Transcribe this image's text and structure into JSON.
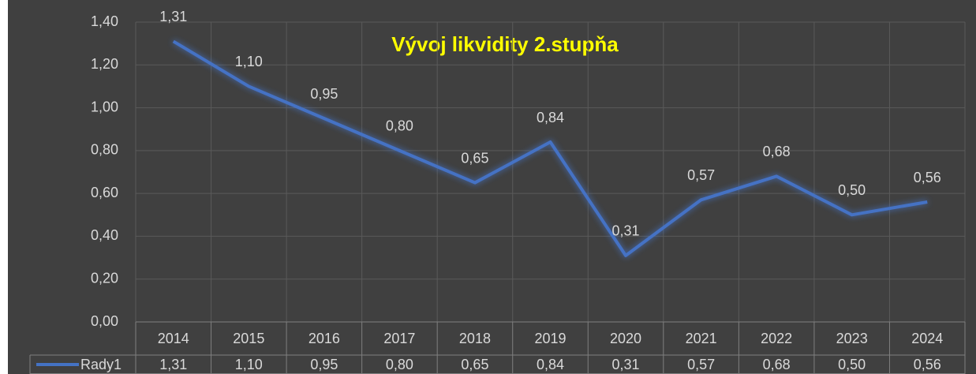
{
  "chart_data": {
    "type": "line",
    "title": "Vývoj likvidity 2.stupňa",
    "categories": [
      "2014",
      "2015",
      "2016",
      "2017",
      "2018",
      "2019",
      "2020",
      "2021",
      "2022",
      "2023",
      "2024"
    ],
    "series": [
      {
        "name": "Rady1",
        "color": "#4472c4",
        "values": [
          1.31,
          1.1,
          0.95,
          0.8,
          0.65,
          0.84,
          0.31,
          0.57,
          0.68,
          0.5,
          0.56
        ],
        "value_labels": [
          "1,31",
          "1,10",
          "0,95",
          "0,80",
          "0,65",
          "0,84",
          "0,31",
          "0,57",
          "0,68",
          "0,50",
          "0,56"
        ]
      }
    ],
    "ylim": [
      0,
      1.4
    ],
    "yticks": [
      {
        "value": 0,
        "label": "0,00"
      },
      {
        "value": 0.2,
        "label": "0,20"
      },
      {
        "value": 0.4,
        "label": "0,40"
      },
      {
        "value": 0.6,
        "label": "0,60"
      },
      {
        "value": 0.8,
        "label": "0,80"
      },
      {
        "value": 1.0,
        "label": "1,00"
      },
      {
        "value": 1.2,
        "label": "1,20"
      },
      {
        "value": 1.4,
        "label": "1,40"
      }
    ],
    "grid": true
  }
}
